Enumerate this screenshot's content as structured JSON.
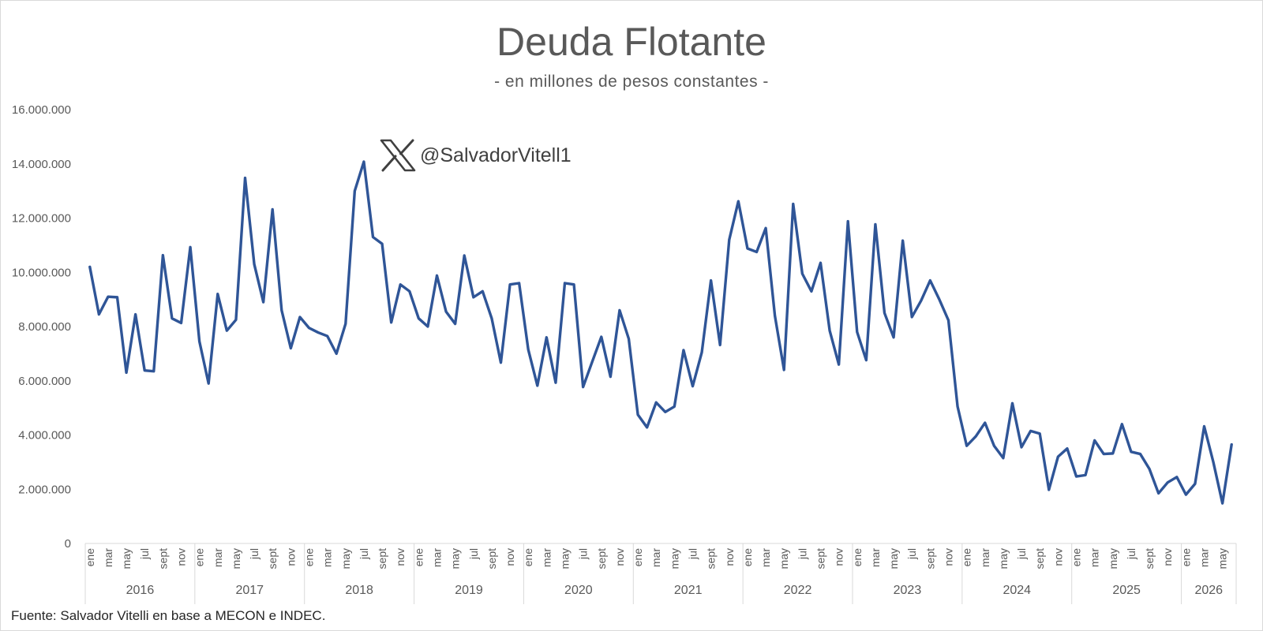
{
  "chart_data": {
    "type": "line",
    "title": "Deuda Flotante",
    "subtitle": "- en millones de pesos constantes -",
    "source": "Fuente: Salvador Vitelli en base a MECON e INDEC.",
    "watermark": "@SalvadorVitell1",
    "ylim": [
      0,
      16000000
    ],
    "yticks": [
      0,
      2000000,
      4000000,
      6000000,
      8000000,
      10000000,
      12000000,
      14000000,
      16000000
    ],
    "ytick_labels": [
      "0",
      "2.000.000",
      "4.000.000",
      "6.000.000",
      "8.000.000",
      "10.000.000",
      "12.000.000",
      "14.000.000",
      "16.000.000"
    ],
    "month_labels": [
      "ene",
      "",
      "mar",
      "",
      "may",
      "",
      "jul",
      "",
      "sept",
      "",
      "nov",
      ""
    ],
    "years": [
      "2016",
      "2017",
      "2018",
      "2019",
      "2020",
      "2021",
      "2022",
      "2023",
      "2024",
      "2025",
      "2026"
    ],
    "last_year_months": 6,
    "line_color": "#2f5597",
    "grid": false,
    "series": [
      {
        "values": [
          10200000,
          8450000,
          9100000,
          9080000,
          6300000,
          8450000,
          6380000,
          6350000,
          10630000,
          8300000,
          8130000,
          10930000,
          7450000,
          5900000,
          9200000,
          7850000,
          8250000,
          13480000,
          10300000,
          8900000,
          12320000,
          8600000,
          7200000,
          8350000,
          7950000,
          7780000,
          7650000,
          7000000,
          8100000,
          13000000,
          14080000,
          11300000,
          11050000,
          8150000,
          9550000,
          9300000,
          8300000,
          8000000,
          9880000,
          8550000,
          8100000,
          10620000,
          9080000,
          9300000,
          8300000,
          6670000,
          9550000,
          9600000,
          7150000,
          5820000,
          7600000,
          5930000,
          9600000,
          9550000,
          5770000,
          6700000,
          7620000,
          6150000,
          8600000,
          7550000,
          4750000,
          4280000,
          5200000,
          4850000,
          5050000,
          7130000,
          5800000,
          7050000,
          9700000,
          7320000,
          11200000,
          12620000,
          10880000,
          10750000,
          11630000,
          8400000,
          6400000,
          12520000,
          9950000,
          9300000,
          10350000,
          7850000,
          6600000,
          11880000,
          7800000,
          6760000,
          11770000,
          8500000,
          7600000,
          11170000,
          8350000,
          8950000,
          9700000,
          9000000,
          8230000,
          5050000,
          3600000,
          3950000,
          4450000,
          3600000,
          3150000,
          5170000,
          3550000,
          4150000,
          4050000,
          1980000,
          3200000,
          3500000,
          2470000,
          2520000,
          3800000,
          3300000,
          3320000,
          4400000,
          3380000,
          3300000,
          2750000,
          1850000,
          2250000,
          2450000,
          1800000,
          2200000,
          4320000,
          3000000,
          1480000,
          3650000
        ]
      }
    ]
  }
}
